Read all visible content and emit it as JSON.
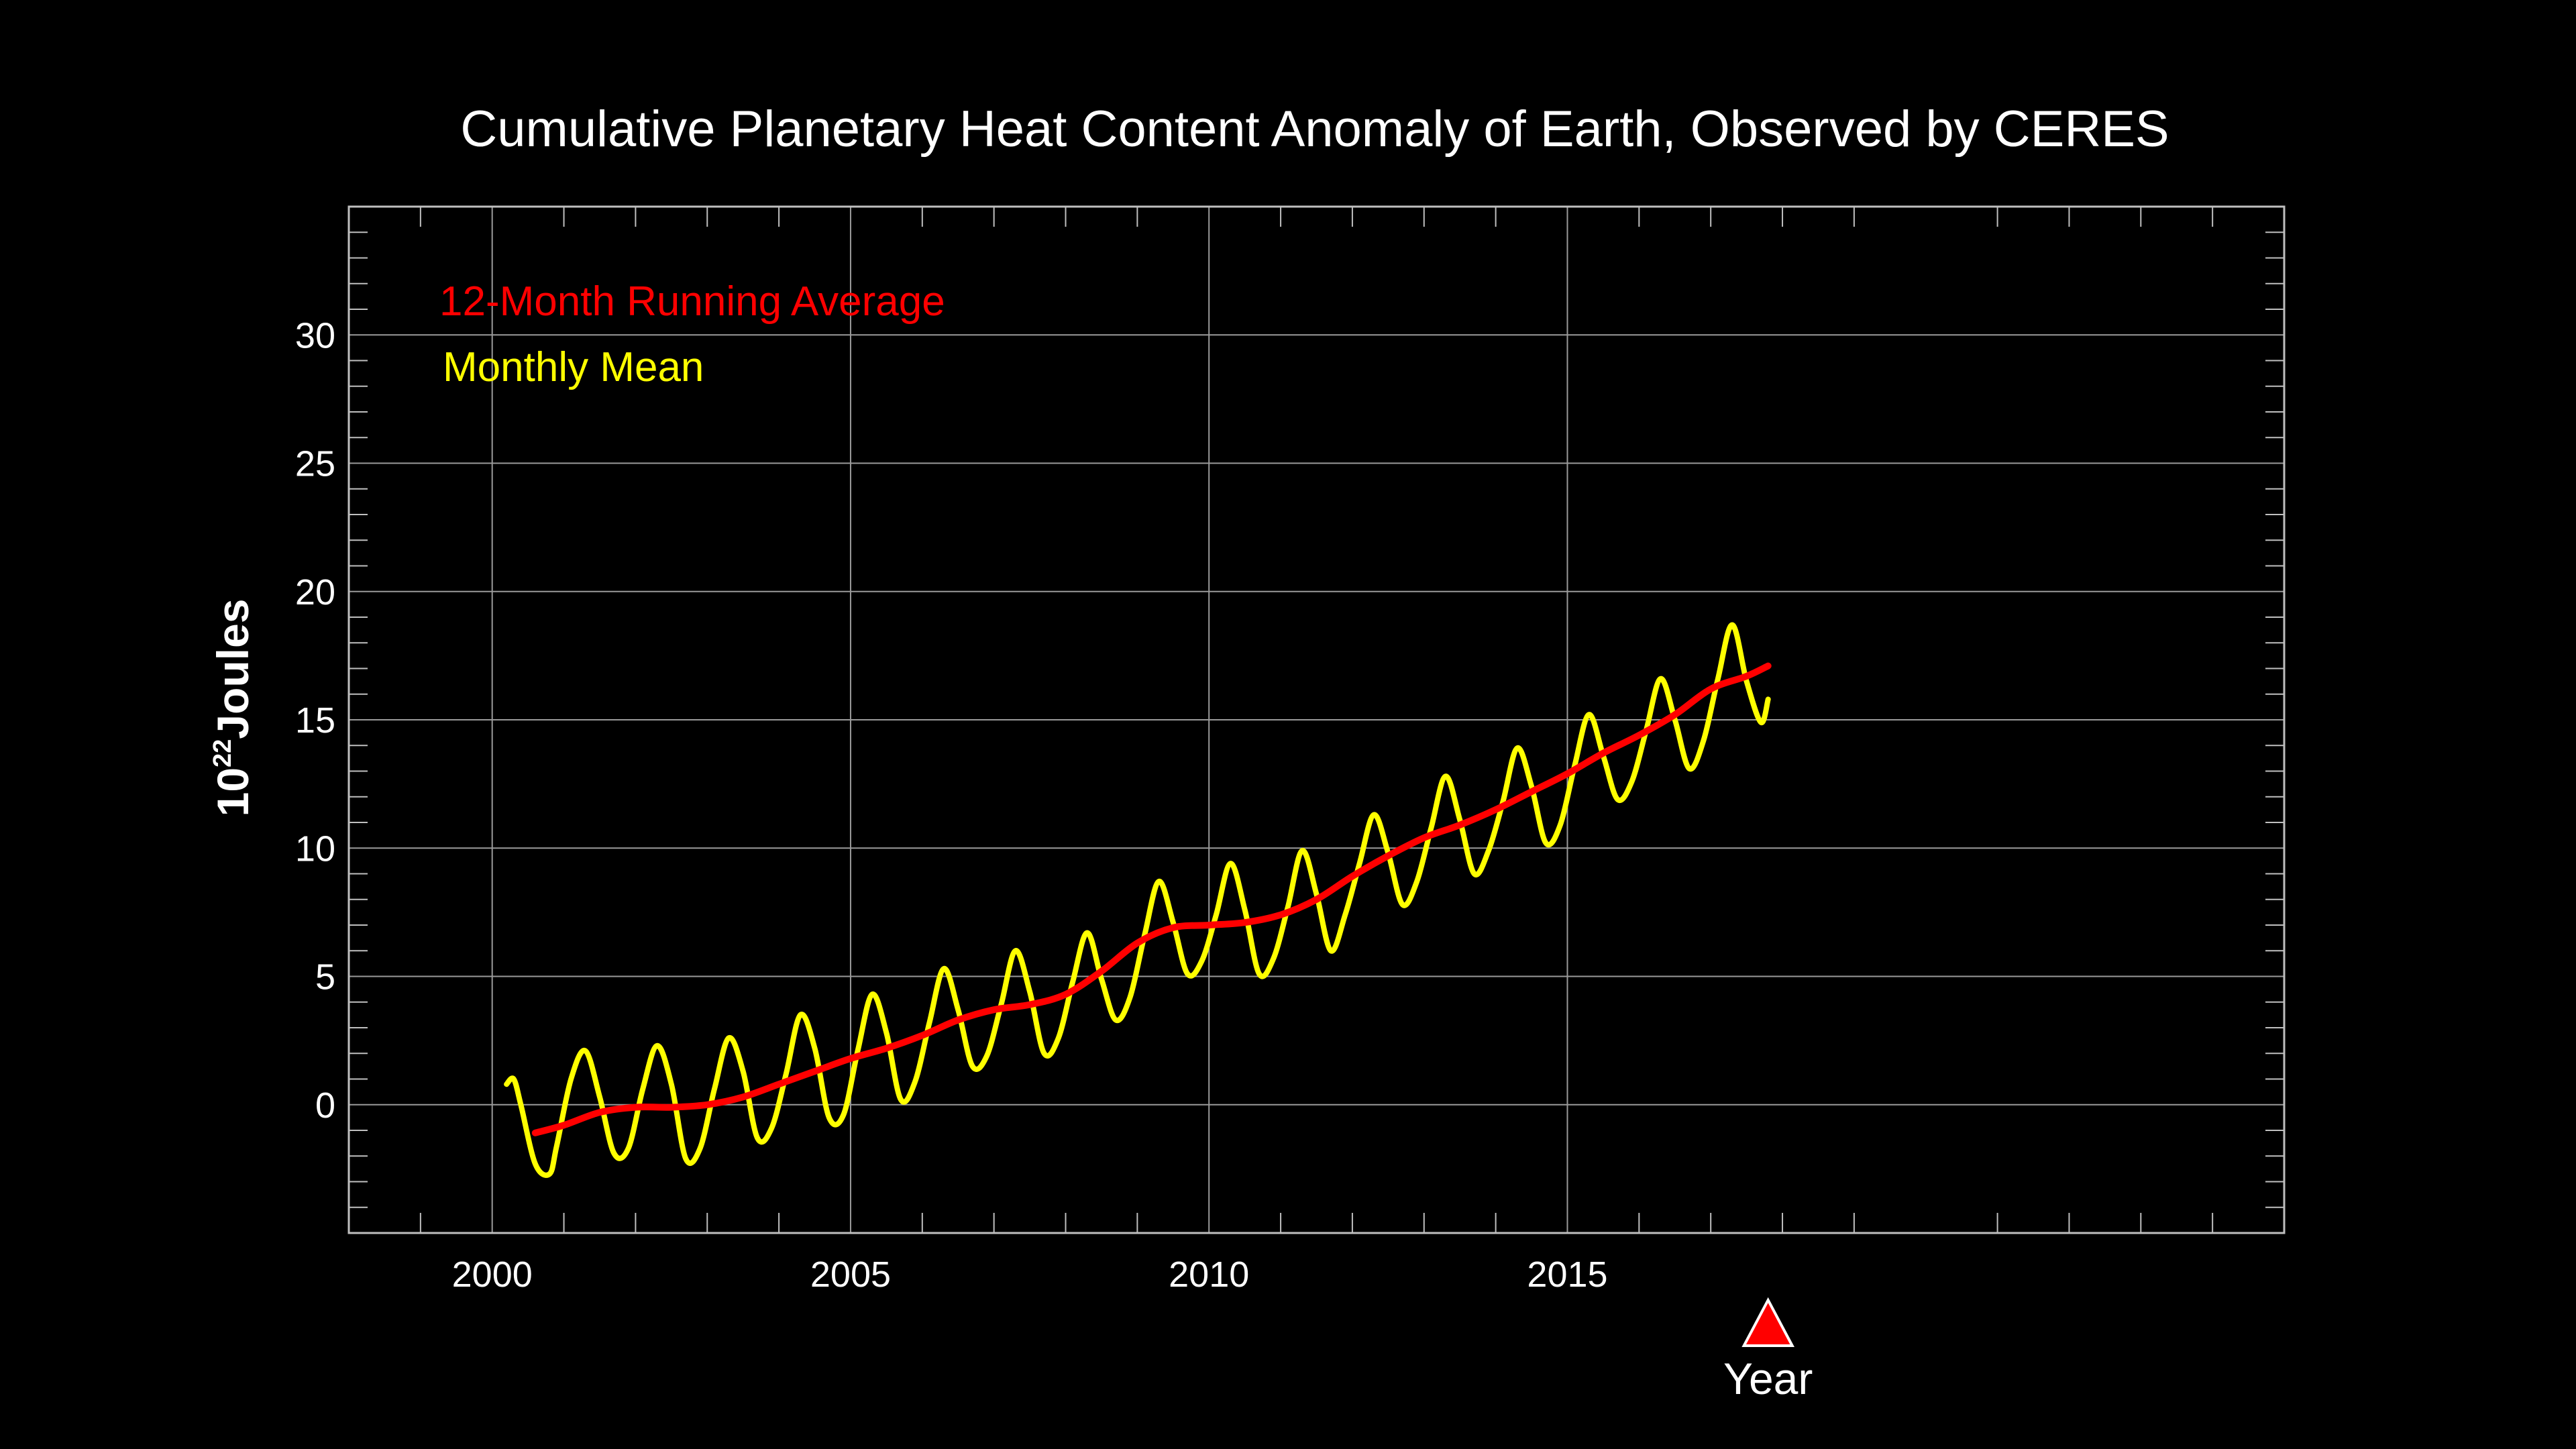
{
  "chart_data": {
    "type": "line",
    "title": "Cumulative Planetary Heat Content Anomaly of Earth, Observed by CERES",
    "xlabel": "Year",
    "ylabel": {
      "base": "10",
      "sup": "22",
      "text": "Joules"
    },
    "xlim": [
      1998,
      2025
    ],
    "ylim": [
      -5,
      35
    ],
    "x_ticks": [
      2000,
      2005,
      2010,
      2015
    ],
    "y_ticks": [
      0,
      5,
      10,
      15,
      20,
      25,
      30
    ],
    "grid": true,
    "legend_position": "top-left",
    "marker": {
      "x": 2017.8,
      "shape": "triangle",
      "color": "#ff0000"
    },
    "series": [
      {
        "name": "12-Month Running Average",
        "color": "#ff0000",
        "x": [
          2000.6,
          2001.0,
          2001.5,
          2002.0,
          2002.5,
          2003.0,
          2003.5,
          2004.0,
          2004.5,
          2005.0,
          2005.5,
          2006.0,
          2006.5,
          2007.0,
          2007.5,
          2008.0,
          2008.5,
          2009.0,
          2009.5,
          2010.0,
          2010.5,
          2011.0,
          2011.5,
          2012.0,
          2012.5,
          2013.0,
          2013.5,
          2014.0,
          2014.5,
          2015.0,
          2015.5,
          2016.0,
          2016.5,
          2017.0,
          2017.5,
          2017.8
        ],
        "values": [
          -1.1,
          -0.8,
          -0.3,
          -0.1,
          -0.1,
          0.0,
          0.3,
          0.8,
          1.3,
          1.8,
          2.2,
          2.7,
          3.3,
          3.7,
          3.9,
          4.3,
          5.2,
          6.3,
          6.9,
          7.0,
          7.1,
          7.4,
          8.0,
          8.9,
          9.7,
          10.4,
          10.9,
          11.5,
          12.2,
          12.9,
          13.7,
          14.4,
          15.2,
          16.2,
          16.7,
          17.1
        ]
      },
      {
        "name": "Monthly Mean",
        "color": "#ffff00",
        "x": [
          2000.2,
          2000.3,
          2000.4,
          2000.6,
          2000.8,
          2000.9,
          2001.1,
          2001.3,
          2001.5,
          2001.7,
          2001.9,
          2002.1,
          2002.3,
          2002.5,
          2002.7,
          2002.9,
          2003.1,
          2003.3,
          2003.5,
          2003.7,
          2003.9,
          2004.1,
          2004.3,
          2004.5,
          2004.7,
          2004.9,
          2005.1,
          2005.3,
          2005.5,
          2005.7,
          2005.9,
          2006.1,
          2006.3,
          2006.5,
          2006.7,
          2006.9,
          2007.1,
          2007.3,
          2007.5,
          2007.7,
          2007.9,
          2008.1,
          2008.3,
          2008.5,
          2008.7,
          2008.9,
          2009.1,
          2009.3,
          2009.5,
          2009.7,
          2009.9,
          2010.1,
          2010.3,
          2010.5,
          2010.7,
          2010.9,
          2011.1,
          2011.3,
          2011.5,
          2011.7,
          2011.9,
          2012.1,
          2012.3,
          2012.5,
          2012.7,
          2012.9,
          2013.1,
          2013.3,
          2013.5,
          2013.7,
          2013.9,
          2014.1,
          2014.3,
          2014.5,
          2014.7,
          2014.9,
          2015.1,
          2015.3,
          2015.5,
          2015.7,
          2015.9,
          2016.1,
          2016.3,
          2016.5,
          2016.7,
          2016.9,
          2017.1,
          2017.3,
          2017.5,
          2017.7,
          2017.8
        ],
        "values": [
          0.8,
          1.0,
          0.0,
          -2.3,
          -2.7,
          -1.6,
          1.0,
          2.1,
          0.3,
          -1.9,
          -1.7,
          0.6,
          2.3,
          0.8,
          -2.1,
          -1.7,
          0.6,
          2.6,
          1.3,
          -1.3,
          -0.9,
          1.2,
          3.5,
          2.2,
          -0.5,
          -0.4,
          2.1,
          4.3,
          2.8,
          0.2,
          0.9,
          3.2,
          5.3,
          3.7,
          1.5,
          1.9,
          3.9,
          6.0,
          4.4,
          2.0,
          2.6,
          4.8,
          6.7,
          4.9,
          3.3,
          4.2,
          6.6,
          8.7,
          7.1,
          5.1,
          5.6,
          7.4,
          9.4,
          7.6,
          5.1,
          5.7,
          7.7,
          9.9,
          8.2,
          6.0,
          7.4,
          9.4,
          11.3,
          9.8,
          7.8,
          8.7,
          10.8,
          12.8,
          11.1,
          9.0,
          9.9,
          11.8,
          13.9,
          12.4,
          10.2,
          10.9,
          13.2,
          15.2,
          13.6,
          11.9,
          12.6,
          14.6,
          16.6,
          15.0,
          13.1,
          14.2,
          16.6,
          18.7,
          16.5,
          14.9,
          15.8
        ]
      }
    ]
  }
}
